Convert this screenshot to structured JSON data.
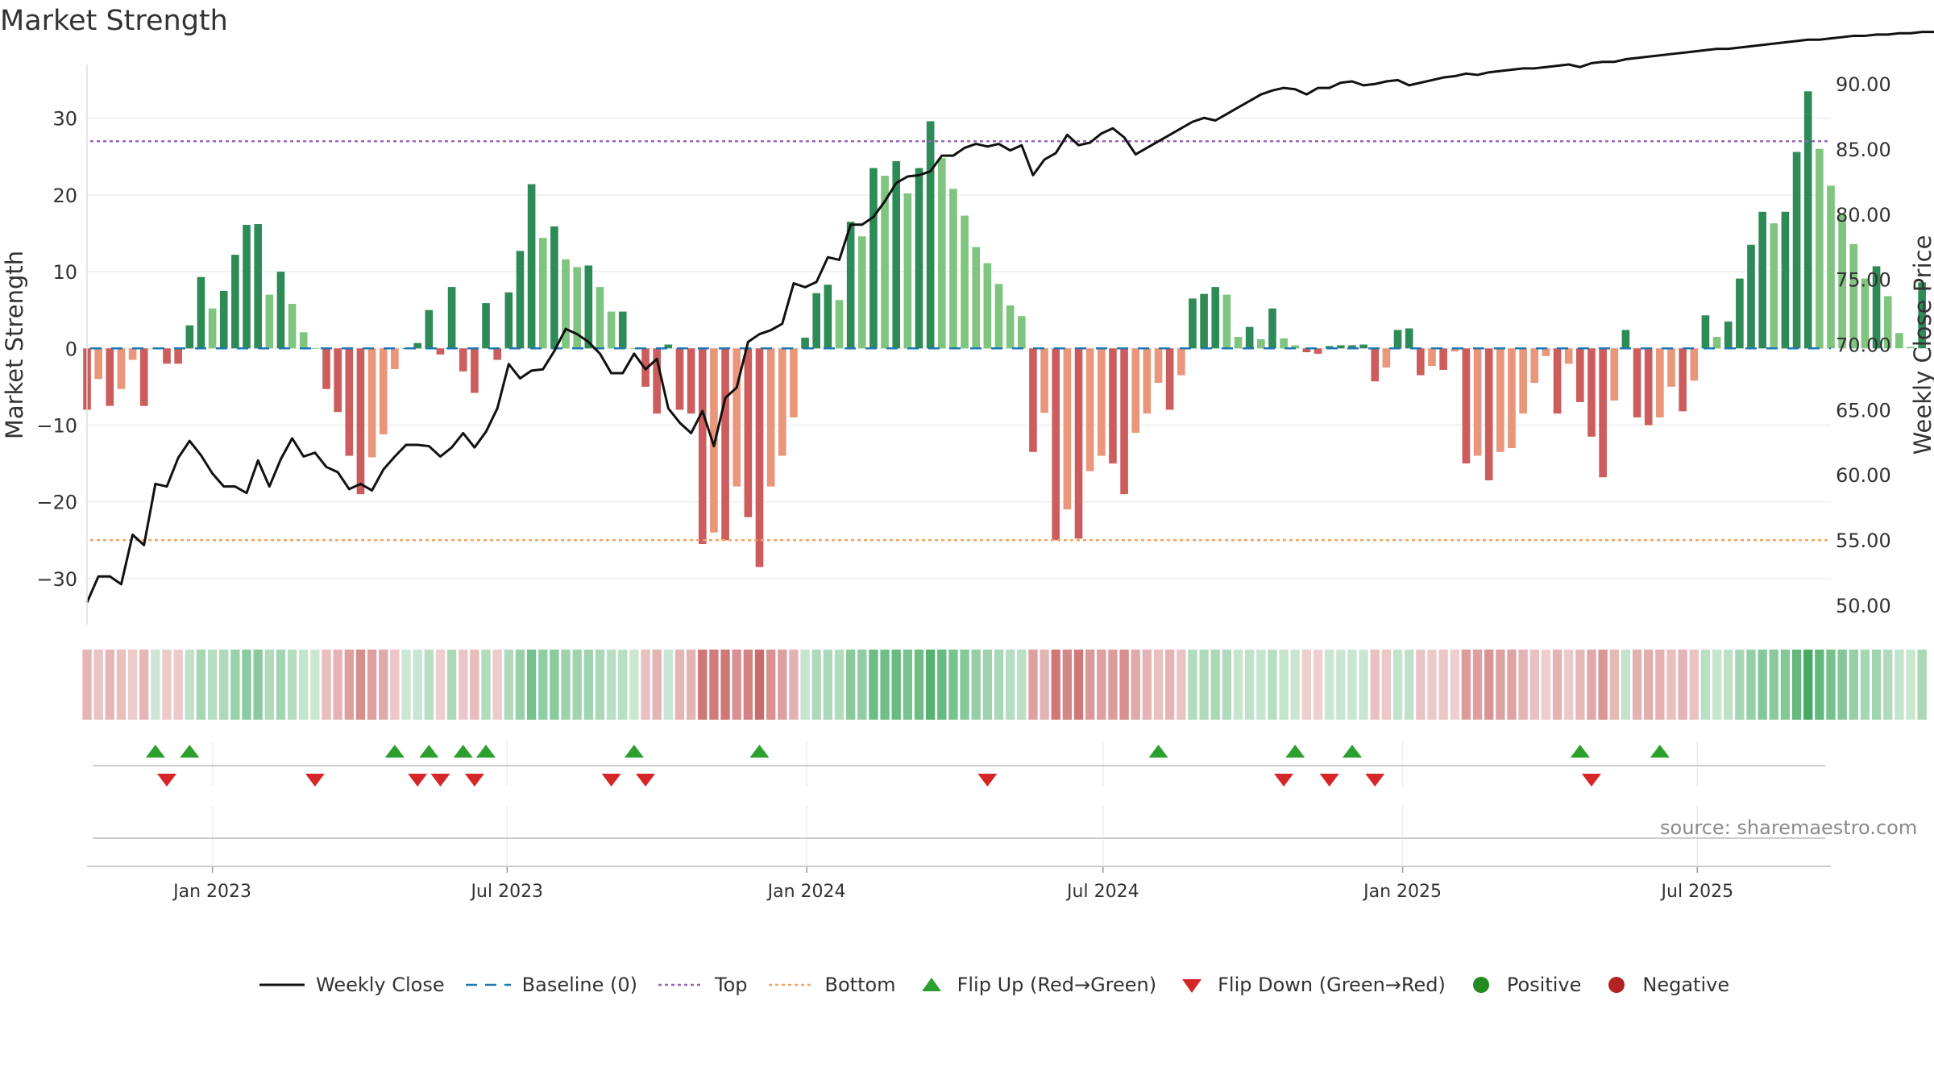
{
  "page": {
    "title": "Market Strength",
    "source": "source: sharemaestro.com"
  },
  "colors": {
    "dark_green": "#2e8b57",
    "light_green": "#7fc47f",
    "dark_red": "#cd5c5c",
    "light_red": "#e9967a",
    "price_line": "#111111",
    "baseline": "#1f77b4",
    "top_line": "#9467bd",
    "bottom_line": "#f4a261",
    "flip_up": "#2ca02c",
    "flip_down": "#d62728",
    "positive": "#228b22",
    "negative": "#b22222"
  },
  "chart_data": {
    "type": "bar",
    "title": "Market Strength",
    "ylabel": "Market Strength",
    "ylabel_right": "Weekly Close Price",
    "ylim": [
      -36,
      37
    ],
    "ylim_right": [
      48.5,
      91.5
    ],
    "y_ticks": [
      30,
      20,
      10,
      0,
      -10,
      -20,
      -30
    ],
    "y_tick_labels": [
      "30",
      "20",
      "10",
      "0",
      "−10",
      "−20",
      "−30"
    ],
    "y_ticks_right": [
      90,
      85,
      80,
      75,
      70,
      65,
      60,
      55,
      50
    ],
    "y_tick_labels_right": [
      "90.00",
      "85.00",
      "80.00",
      "75.00",
      "70.00",
      "65.00",
      "60.00",
      "55.00",
      "50.00"
    ],
    "x_range": [
      "2022-10-16",
      "2025-09-21"
    ],
    "x_ticks": [
      "2023-01-01",
      "2023-07-01",
      "2024-01-01",
      "2024-07-01",
      "2025-01-01",
      "2025-07-01"
    ],
    "x_tick_labels": [
      "Jan 2023",
      "Jul 2023",
      "Jan 2024",
      "Jul 2024",
      "Jan 2025",
      "Jul 2025"
    ],
    "start_date": "2022-10-16",
    "interval_days": 7,
    "top_level": 27,
    "bottom_level": -25,
    "strength": [
      -8,
      -4,
      -7.5,
      -5.3,
      -1.5,
      -7.5,
      0,
      -2,
      -2,
      3,
      9.3,
      5.2,
      7.5,
      12.2,
      16.1,
      16.2,
      7,
      10,
      5.8,
      2.1,
      0,
      -5.3,
      -8.3,
      -14,
      -19,
      -14.2,
      -11.2,
      -2.7,
      0,
      0.7,
      5,
      -0.8,
      8,
      -3,
      -5.8,
      5.9,
      -1.5,
      7.3,
      12.7,
      21.4,
      14.4,
      15.9,
      11.6,
      10.6,
      10.8,
      8,
      4.8,
      4.8,
      0,
      -5,
      -8.5,
      0.5,
      -8,
      -8.5,
      -25.5,
      -24,
      -25,
      -18,
      -22,
      -28.5,
      -18,
      -14,
      -9,
      1.4,
      7.2,
      8.3,
      6.3,
      16.5,
      14.6,
      23.5,
      22.5,
      24.4,
      20.2,
      23.5,
      29.6,
      24.8,
      20.8,
      17.3,
      13.2,
      11.1,
      8.4,
      5.6,
      4.2,
      -13.5,
      -8.4,
      -25,
      -21,
      -24.8,
      -16,
      -14,
      -15,
      -19,
      -11,
      -8.5,
      -4.5,
      -8,
      -3.5,
      6.5,
      7.1,
      8,
      7,
      1.5,
      2.8,
      1.2,
      5.2,
      1.3,
      0.4,
      -0.5,
      -0.7,
      0.3,
      0.4,
      0.4,
      0.5,
      -4.3,
      -2.5,
      2.4,
      2.6,
      -3.5,
      -2.3,
      -2.8,
      -0.4,
      -15,
      -14,
      -17.2,
      -13.5,
      -13,
      -8.5,
      -4.5,
      -1,
      -8.5,
      -2,
      -7,
      -11.5,
      -16.8,
      -6.8,
      2.4,
      -9,
      -10,
      -9,
      -5,
      -8.2,
      -4.2,
      4.3,
      1.5,
      3.5,
      9.1,
      13.5,
      17.8,
      16.3,
      17.8,
      25.6,
      33.5,
      26,
      21.2,
      17.5,
      13.6,
      9.1,
      10.7,
      6.8,
      2,
      0.2,
      8.6
    ],
    "weekly_close": [
      50.2,
      52.2,
      52.2,
      51.6,
      55.4,
      54.6,
      59.3,
      59.1,
      61.3,
      62.6,
      61.5,
      60.1,
      59.1,
      59.1,
      58.6,
      61.1,
      59.1,
      61.2,
      62.8,
      61.4,
      61.7,
      60.6,
      60.2,
      58.9,
      59.3,
      58.8,
      60.4,
      61.4,
      62.3,
      62.3,
      62.2,
      61.4,
      62.1,
      63.2,
      62.1,
      63.3,
      65.1,
      68.5,
      67.4,
      68,
      68.1,
      69.5,
      71.2,
      70.8,
      70.2,
      69.3,
      67.8,
      67.8,
      69.3,
      68.1,
      68.9,
      65.1,
      64,
      63.2,
      64.9,
      62.2,
      65.9,
      66.7,
      70.2,
      70.8,
      71.1,
      71.6,
      74.7,
      74.4,
      74.8,
      76.7,
      76.5,
      79.2,
      79.2,
      79.8,
      81,
      82.4,
      82.9,
      83,
      83.3,
      84.5,
      84.5,
      85.1,
      85.4,
      85.2,
      85.4,
      84.9,
      85.3,
      83,
      84.2,
      84.7,
      86.1,
      85.3,
      85.5,
      86.2,
      86.6,
      85.9,
      84.6,
      85.1,
      85.6,
      86.1,
      86.6,
      87.1,
      87.4,
      87.2,
      87.7,
      88.2,
      88.7,
      89.2,
      89.5,
      89.7,
      89.6,
      89.2,
      89.7,
      89.7,
      90.1,
      90.2,
      89.9,
      90,
      90.2,
      90.3,
      89.9,
      90.1,
      90.3,
      90.5,
      90.6,
      90.8,
      90.7,
      90.9,
      91,
      91.1,
      91.2,
      91.2,
      91.3,
      91.4,
      91.5,
      91.3,
      91.6,
      91.7,
      91.7,
      91.9,
      92,
      92.1,
      92.2,
      92.3,
      92.4,
      92.5,
      92.6,
      92.7,
      92.7,
      92.8,
      92.9,
      93,
      93.1,
      93.2,
      93.3,
      93.4,
      93.4,
      93.5,
      93.6,
      93.7,
      93.7,
      93.8,
      93.8,
      93.9,
      93.9,
      94,
      94,
      94
    ],
    "flip_up_indices": [
      6,
      9,
      27,
      30,
      33,
      35,
      48,
      59,
      94,
      106,
      111,
      131,
      138
    ],
    "flip_down_indices": [
      7,
      20,
      29,
      31,
      34,
      46,
      49,
      79,
      105,
      109,
      113,
      132
    ],
    "legend": [
      "Weekly Close",
      "Baseline (0)",
      "Top",
      "Bottom",
      "Flip Up (Red→Green)",
      "Flip Down (Green→Red)",
      "Positive",
      "Negative"
    ]
  }
}
